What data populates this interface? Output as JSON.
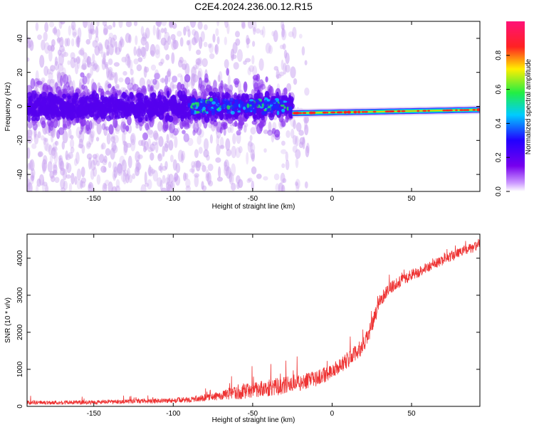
{
  "figure": {
    "title": "C2E4.2024.236.00.12.R15"
  },
  "colors": {
    "snr_line": "#ee3333",
    "spectrum_purple_low": "#c9a3f0",
    "spectrum_purple_high": "#5500ee",
    "spectrum_blue": "#2222ff",
    "spectrum_green": "#22ee55",
    "spectrum_red": "#ff2222"
  },
  "chart_data": [
    {
      "type": "heatmap",
      "title": "C2E4.2024.236.00.12.R15",
      "xlabel": "Height of straight line (km)",
      "ylabel": "Frequency (Hz)",
      "xlim": [
        -192,
        93
      ],
      "ylim": [
        -50,
        50
      ],
      "x_ticks": [
        -150,
        -100,
        -50,
        0,
        50
      ],
      "y_ticks": [
        -40,
        -20,
        0,
        20,
        40
      ],
      "colorbar": {
        "label": "Normalized spectral amplitude",
        "range": [
          0,
          1
        ],
        "ticks": [
          0.0,
          0.2,
          0.4,
          0.6,
          0.8
        ],
        "colormap": [
          "#ffffff",
          "#cc99ff",
          "#7700ee",
          "#2200ff",
          "#00ccff",
          "#22ee44",
          "#ffee00",
          "#ff2222",
          "#ff1177"
        ]
      },
      "features": {
        "noise_cloud_x_range": [
          -192,
          -25
        ],
        "noise_cloud_freq_spread": [
          -50,
          50
        ],
        "core_band_freq": [
          -8,
          8
        ],
        "signal_onset_km": -25,
        "tone_x_range": [
          -25,
          93
        ],
        "tone_freq_start": -4,
        "tone_freq_end": -2
      }
    },
    {
      "type": "line",
      "xlabel": "Height of straight line (km)",
      "ylabel": "SNR (10 * v/v)",
      "xlim": [
        -192,
        93
      ],
      "ylim": [
        0,
        4650
      ],
      "x_ticks": [
        -150,
        -100,
        -50,
        0,
        50
      ],
      "y_ticks": [
        0,
        1000,
        2000,
        3000,
        4000
      ],
      "series": [
        {
          "x": [
            -192,
            -150,
            -120,
            -100,
            -90,
            -80,
            -70,
            -60,
            -50,
            -40,
            -30,
            -20,
            -10,
            0,
            10,
            20,
            25,
            30,
            35,
            40,
            50,
            60,
            70,
            80,
            90,
            93
          ],
          "y": [
            100,
            110,
            140,
            160,
            180,
            230,
            290,
            360,
            450,
            500,
            560,
            640,
            750,
            950,
            1250,
            1650,
            2150,
            2850,
            3150,
            3300,
            3550,
            3750,
            3950,
            4150,
            4300,
            4400
          ],
          "noise_amplitude": [
            80,
            80,
            90,
            100,
            110,
            130,
            170,
            260,
            300,
            340,
            340,
            320,
            300,
            300,
            300,
            320,
            320,
            250,
            250,
            220,
            220,
            200,
            200,
            200,
            200,
            220
          ]
        }
      ]
    }
  ]
}
